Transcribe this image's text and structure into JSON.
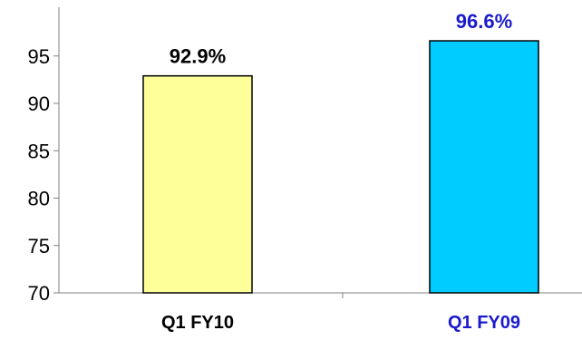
{
  "chart_data": {
    "type": "bar",
    "categories": [
      "Q1 FY10",
      "Q1 FY09"
    ],
    "values": [
      92.9,
      96.6
    ],
    "data_labels": [
      "92.9%",
      "96.6%"
    ],
    "ylim": [
      70,
      100
    ],
    "yticks": [
      70,
      75,
      80,
      85,
      90,
      95
    ],
    "ytick_labels": [
      "70",
      "75",
      "80",
      "85",
      "90",
      "95"
    ],
    "bar_colors": [
      "#ffff99",
      "#00ccff"
    ],
    "label_colors": [
      "#000000",
      "#1a1acc"
    ],
    "grid": false,
    "legend": "none"
  }
}
